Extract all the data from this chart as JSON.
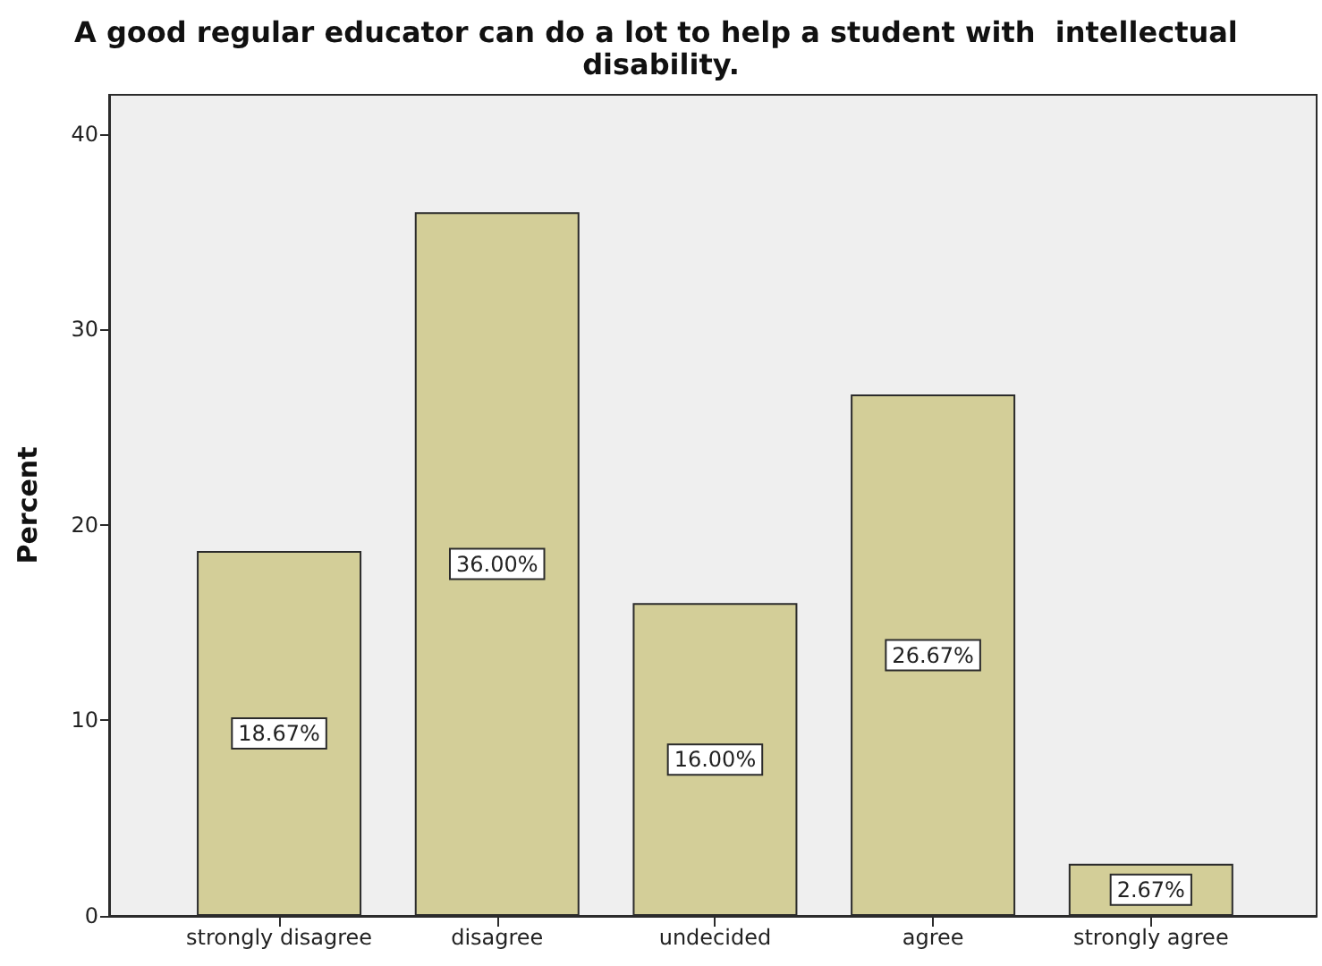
{
  "chart_data": {
    "type": "bar",
    "title": "A good regular educator can do a lot to help a student with  intellectual disability.",
    "ylabel": "Percent",
    "categories": [
      "strongly disagree",
      "disagree",
      "undecided",
      "agree",
      "strongly agree"
    ],
    "values": [
      18.67,
      36,
      16,
      26.67,
      2.67
    ],
    "value_labels": [
      "18.67%",
      "36.00%",
      "16.00%",
      "26.67%",
      "2.67%"
    ],
    "color": "#d3ce98",
    "ylim": [
      0,
      42
    ],
    "yticks": [
      0,
      10,
      20,
      30,
      40
    ]
  }
}
